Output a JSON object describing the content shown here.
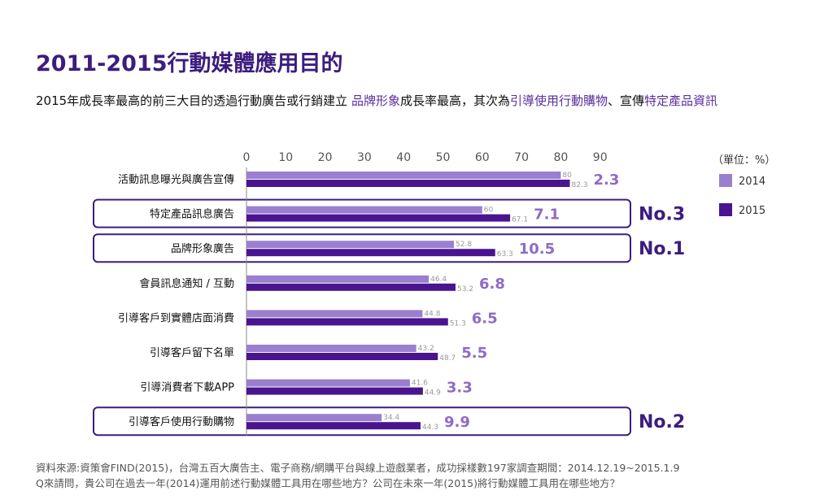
{
  "title": "2011-2015行動媒體應用目的",
  "subtitle": {
    "part1": "2015年成長率最高的前三大目的透過行動廣告或行銷建立 ",
    "hl1": "品牌形象",
    "part2": "成長率最高，其次為",
    "hl2": "引導使用行動購物",
    "part3": "、宣傳",
    "hl3": "特定產品資訊"
  },
  "legend": {
    "unit": "（單位：%）",
    "items": [
      {
        "label": "2014",
        "color": "#9b7fcf"
      },
      {
        "label": "2015",
        "color": "#4a1491"
      }
    ]
  },
  "chart_data": {
    "type": "bar",
    "orientation": "horizontal",
    "xlim": [
      0,
      90
    ],
    "ticks": [
      "0",
      "10",
      "20",
      "30",
      "40",
      "50",
      "60",
      "70",
      "80",
      "90"
    ],
    "categories": [
      "活動訊息曝光與廣告宣傳",
      "特定產品訊息廣告",
      "品牌形象廣告",
      "會員訊息通知 / 互動",
      "引導客戶到實體店面消費",
      "引導客戶留下名單",
      "引導消費者下載APP",
      "引導客戶使用行動購物"
    ],
    "series": [
      {
        "name": "2014",
        "values": [
          80,
          60,
          52.8,
          46.4,
          44.8,
          43.2,
          41.6,
          34.4
        ],
        "labels": [
          "80",
          "60",
          "52.8",
          "46.4",
          "44.8",
          "43.2",
          "41.6",
          "34.4"
        ]
      },
      {
        "name": "2015",
        "values": [
          82.3,
          67.1,
          63.3,
          53.2,
          51.3,
          48.7,
          44.9,
          44.3
        ],
        "labels": [
          "82.3",
          "67.1",
          "63.3",
          "53.2",
          "51.3",
          "48.7",
          "44.9",
          "44.3"
        ]
      }
    ],
    "growth": [
      "2.3",
      "7.1",
      "10.5",
      "6.8",
      "6.5",
      "5.5",
      "3.3",
      "9.9"
    ],
    "highlights": [
      {
        "row": 1,
        "label": "No.3"
      },
      {
        "row": 2,
        "label": "No.1"
      },
      {
        "row": 7,
        "label": "No.2"
      }
    ],
    "colors": {
      "s2014": "#9b7fcf",
      "s2015": "#4a1491",
      "growth": "#8e6cc6",
      "box": "#3c1d7e",
      "rank": "#3c1d7e"
    }
  },
  "source": {
    "line1": "資料來源:資策會FIND(2015)，台灣五百大廣告主、電子商務/網購平台與線上遊戲業者，成功採樣數197家調查期間：2014.12.19~2015.1.9",
    "line2": "Q來請問，貴公司在過去一年(2014)運用前述行動媒體工具用在哪些地方？公司在未來一年(2015)將行動媒體工具用在哪些地方？"
  }
}
